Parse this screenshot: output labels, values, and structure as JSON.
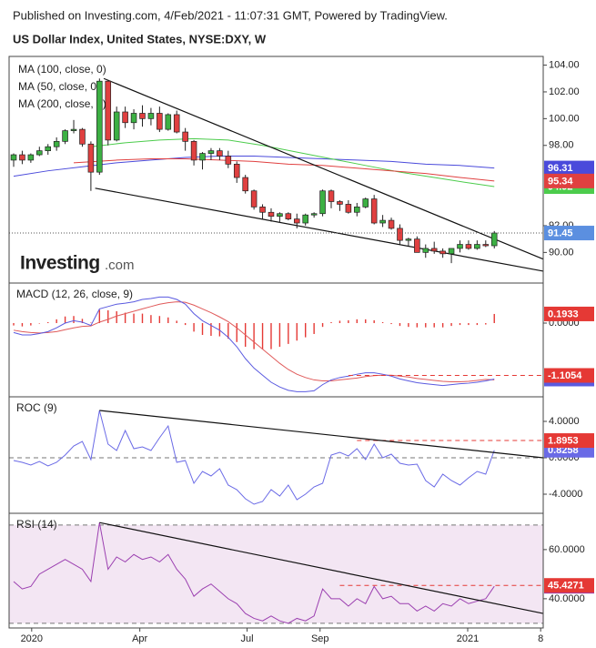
{
  "header": {
    "published": "Published on Investing.com, 4/Feb/2021 - 11:07:31 GMT, Powered by TradingView.",
    "title": "US Dollar Index, United States, NYSE:DXY, W"
  },
  "logo": {
    "name": "Investing",
    "suffix": ".com"
  },
  "chart_data": [
    {
      "type": "candlestick",
      "xlim": [
        -0.53,
        61.7
      ],
      "ylim": [
        87.78,
        104.65
      ],
      "yticks": [
        {
          "value": 90,
          "label": "90.00"
        },
        {
          "value": 92,
          "label": "92.00"
        },
        {
          "value": 98,
          "label": "98.00"
        },
        {
          "value": 100,
          "label": "100.00"
        },
        {
          "value": 102,
          "label": "102.00"
        },
        {
          "value": 104,
          "label": "104.00"
        }
      ],
      "up_color": "#3cb043",
      "down_color": "#e04040",
      "close_color": "#5b8fe0",
      "open": [
        96.9,
        97.3,
        96.9,
        97.3,
        97.6,
        97.9,
        98.3,
        99.1,
        99.2,
        98.1,
        96.0,
        102.8,
        98.4,
        100.5,
        99.7,
        100.4,
        100.0,
        100.4,
        99.2,
        100.3,
        99.0,
        98.3,
        96.9,
        97.4,
        97.6,
        97.2,
        96.6,
        95.6,
        94.6,
        93.4,
        93.0,
        92.7,
        92.9,
        92.5,
        92.2,
        92.8,
        92.9,
        94.6,
        93.8,
        93.6,
        93.0,
        93.4,
        94.0,
        92.2,
        92.4,
        91.8,
        90.9,
        91.0,
        90.0,
        90.3,
        90.1,
        89.9,
        90.3,
        90.6,
        90.3,
        90.6,
        90.5
      ],
      "high": [
        97.4,
        97.6,
        97.4,
        97.9,
        98.1,
        98.6,
        99.2,
        99.9,
        99.3,
        98.3,
        103.0,
        102.9,
        100.9,
        100.9,
        100.7,
        101.0,
        100.8,
        100.9,
        100.4,
        100.6,
        99.3,
        98.4,
        97.5,
        97.8,
        97.8,
        97.6,
        96.8,
        95.8,
        94.7,
        93.6,
        93.3,
        93.0,
        93.0,
        92.9,
        92.9,
        93.0,
        94.7,
        94.7,
        93.9,
        93.9,
        93.7,
        94.1,
        94.3,
        92.8,
        92.6,
        92.1,
        91.1,
        91.2,
        90.6,
        90.8,
        90.3,
        90.3,
        90.9,
        90.9,
        90.9,
        90.9,
        91.6
      ],
      "low": [
        96.4,
        96.6,
        96.7,
        97.2,
        97.3,
        97.6,
        98.1,
        98.9,
        97.9,
        94.6,
        95.8,
        98.0,
        98.3,
        99.3,
        99.2,
        99.4,
        99.5,
        99.0,
        99.1,
        98.9,
        97.6,
        96.5,
        96.2,
        96.9,
        96.9,
        96.3,
        95.2,
        94.4,
        93.2,
        92.5,
        92.3,
        92.2,
        92.4,
        91.8,
        92.0,
        92.6,
        92.7,
        93.3,
        93.1,
        92.9,
        92.7,
        93.3,
        92.1,
        91.9,
        91.7,
        90.6,
        90.5,
        90.0,
        89.6,
        89.9,
        89.6,
        89.2,
        90.0,
        90.2,
        90.2,
        90.4,
        90.3
      ],
      "close": [
        97.3,
        96.9,
        97.3,
        97.6,
        97.9,
        98.3,
        99.1,
        99.2,
        98.1,
        96.0,
        102.8,
        98.4,
        100.5,
        99.7,
        100.4,
        100.0,
        100.4,
        99.2,
        100.3,
        99.0,
        98.3,
        96.9,
        97.4,
        97.6,
        97.2,
        96.6,
        95.6,
        94.6,
        93.4,
        93.0,
        92.7,
        92.9,
        92.5,
        92.2,
        92.8,
        92.9,
        94.6,
        93.8,
        93.6,
        93.0,
        93.4,
        94.0,
        92.2,
        92.4,
        91.8,
        90.9,
        91.0,
        90.0,
        90.3,
        90.1,
        89.9,
        90.3,
        90.6,
        90.3,
        90.6,
        90.5,
        91.45
      ],
      "series": [
        {
          "name": "MA (100, close, 0)",
          "color": "#4a4adb",
          "x": [
            0,
            4,
            8,
            12,
            16,
            20,
            24,
            28,
            32,
            36,
            40,
            44,
            48,
            52,
            56
          ],
          "values": [
            95.7,
            96.1,
            96.4,
            96.7,
            96.9,
            97.1,
            97.2,
            97.2,
            97.1,
            97.0,
            96.9,
            96.8,
            96.6,
            96.5,
            96.31
          ]
        },
        {
          "name": "MA (50, close, 0)",
          "color": "#4ccc4c",
          "x": [
            9,
            13,
            17,
            21,
            25,
            29,
            33,
            37,
            41,
            45,
            49,
            53,
            56
          ],
          "values": [
            97.9,
            98.2,
            98.4,
            98.5,
            98.4,
            98.0,
            97.5,
            97.0,
            96.5,
            96.0,
            95.6,
            95.2,
            94.92
          ]
        },
        {
          "name": "MA (200, close, 0)",
          "color": "#e04040",
          "x": [
            7,
            12,
            16,
            20,
            24,
            28,
            32,
            36,
            40,
            44,
            48,
            52,
            56
          ],
          "values": [
            96.7,
            96.9,
            97.0,
            97.0,
            96.9,
            96.8,
            96.6,
            96.5,
            96.3,
            96.1,
            95.9,
            95.6,
            95.34
          ]
        }
      ],
      "trendlines": [
        [
          10.5,
          103.0,
          61.7,
          89.5
        ],
        [
          9.5,
          94.8,
          61.7,
          88.6
        ]
      ]
    },
    {
      "type": "macd",
      "title": "MACD (12, 26, close, 9)",
      "xlim": [
        -0.53,
        61.7
      ],
      "ylim": [
        -1.538,
        0.827
      ],
      "yticks": [
        {
          "value": 0,
          "label": "0.0000"
        }
      ],
      "hist_color": "#e53935",
      "macd_color": "#5a5ae0",
      "signal_color": "#e05a5a",
      "histogram": [
        -0.05,
        -0.07,
        -0.05,
        -0.01,
        0.02,
        0.08,
        0.14,
        0.15,
        0.09,
        0.01,
        0.28,
        0.27,
        0.25,
        0.22,
        0.2,
        0.2,
        0.17,
        0.15,
        0.12,
        0.05,
        -0.04,
        -0.18,
        -0.25,
        -0.27,
        -0.28,
        -0.33,
        -0.4,
        -0.5,
        -0.55,
        -0.55,
        -0.55,
        -0.5,
        -0.44,
        -0.37,
        -0.3,
        -0.23,
        -0.08,
        0.02,
        0.05,
        0.06,
        0.08,
        0.08,
        0.06,
        0.02,
        -0.02,
        -0.06,
        -0.08,
        -0.09,
        -0.09,
        -0.09,
        -0.09,
        -0.06,
        -0.04,
        -0.04,
        -0.04,
        -0.03,
        0.1933
      ],
      "macd": [
        -0.2,
        -0.25,
        -0.25,
        -0.22,
        -0.18,
        -0.1,
        0,
        0.05,
        0.02,
        -0.05,
        0.3,
        0.35,
        0.4,
        0.42,
        0.45,
        0.5,
        0.52,
        0.55,
        0.55,
        0.5,
        0.4,
        0.2,
        0.05,
        -0.05,
        -0.15,
        -0.3,
        -0.5,
        -0.75,
        -0.95,
        -1.1,
        -1.25,
        -1.35,
        -1.42,
        -1.45,
        -1.45,
        -1.43,
        -1.3,
        -1.2,
        -1.15,
        -1.12,
        -1.08,
        -1.05,
        -1.05,
        -1.08,
        -1.12,
        -1.18,
        -1.22,
        -1.26,
        -1.28,
        -1.3,
        -1.32,
        -1.3,
        -1.28,
        -1.27,
        -1.25,
        -1.22,
        -1.1821
      ],
      "signal": [
        -0.15,
        -0.18,
        -0.2,
        -0.21,
        -0.2,
        -0.18,
        -0.14,
        -0.1,
        -0.07,
        -0.06,
        0.02,
        0.08,
        0.15,
        0.2,
        0.25,
        0.3,
        0.35,
        0.4,
        0.43,
        0.45,
        0.44,
        0.38,
        0.3,
        0.22,
        0.13,
        0.03,
        -0.1,
        -0.25,
        -0.4,
        -0.55,
        -0.7,
        -0.85,
        -0.98,
        -1.08,
        -1.15,
        -1.2,
        -1.22,
        -1.22,
        -1.2,
        -1.18,
        -1.16,
        -1.13,
        -1.11,
        -1.1,
        -1.1,
        -1.12,
        -1.14,
        -1.17,
        -1.19,
        -1.21,
        -1.23,
        -1.24,
        -1.24,
        -1.23,
        -1.21,
        -1.19,
        -1.2
      ],
      "levels": [
        {
          "value": -1.1054,
          "start": 39,
          "color": "#e53935"
        }
      ]
    },
    {
      "type": "line",
      "title": "ROC (9)",
      "xlim": [
        -0.53,
        61.7
      ],
      "ylim": [
        -6.0,
        6.6
      ],
      "yticks": [
        {
          "value": -4,
          "label": "-4.0000"
        },
        {
          "value": 0,
          "label": "0.0000"
        },
        {
          "value": 4,
          "label": "4.0000"
        }
      ],
      "zero_line": true,
      "color": "#6a6ae6",
      "values": [
        -0.3,
        -0.5,
        -0.8,
        -0.4,
        -0.9,
        -0.5,
        0.3,
        1.3,
        1.8,
        -0.2,
        5.2,
        1.5,
        0.8,
        3.0,
        1.0,
        1.2,
        0.8,
        2.2,
        3.5,
        -0.5,
        -0.3,
        -2.8,
        -1.5,
        -2.0,
        -1.2,
        -3.0,
        -3.5,
        -4.5,
        -5.1,
        -4.8,
        -3.5,
        -4.2,
        -3.0,
        -4.6,
        -4.0,
        -3.2,
        -2.8,
        0.3,
        0.6,
        0.2,
        1.0,
        -0.2,
        1.5,
        0,
        0.4,
        -0.6,
        -0.8,
        -0.7,
        -2.5,
        -3.2,
        -1.8,
        -2.5,
        -3.0,
        -2.2,
        -1.5,
        -1.8,
        0.8258
      ],
      "levels": [
        {
          "value": 1.8953,
          "start": 40,
          "color": "#e53935"
        }
      ],
      "trendlines": [
        [
          10,
          5.2,
          61.7,
          0
        ]
      ]
    },
    {
      "type": "line",
      "title": "RSI (14)",
      "xlim": [
        -0.53,
        61.7
      ],
      "ylim": [
        28.1,
        74.4
      ],
      "yticks": [
        {
          "value": 40,
          "label": "40.0000"
        },
        {
          "value": 60,
          "label": "60.0000"
        }
      ],
      "band": [
        30,
        70
      ],
      "band_color": "#f3e6f3",
      "color": "#9b3fb0",
      "values": [
        47,
        44,
        45,
        50,
        52,
        54,
        56,
        54,
        52,
        47,
        71,
        52,
        57,
        55,
        58,
        56,
        57,
        55,
        58,
        52,
        48,
        41,
        44,
        46,
        43,
        40,
        38,
        34,
        32,
        31,
        33,
        31,
        30,
        32,
        31,
        33,
        44,
        40,
        40,
        37,
        40,
        38,
        45,
        40,
        41,
        38,
        38,
        35,
        37,
        35,
        38,
        37,
        40,
        38,
        39,
        40,
        45.0775
      ],
      "levels": [
        {
          "value": 45.4271,
          "start": 38,
          "color": "#e53935"
        }
      ],
      "trendlines": [
        [
          10,
          71,
          61.7,
          34
        ]
      ],
      "xticks": [
        {
          "value": 2.1,
          "label": "2020"
        },
        {
          "value": 14.7,
          "label": "Apr"
        },
        {
          "value": 27.2,
          "label": "Jul"
        },
        {
          "value": 35.7,
          "label": "Sep"
        },
        {
          "value": 52.9,
          "label": "2021"
        },
        {
          "value": 61.4,
          "label": "8"
        }
      ]
    }
  ]
}
